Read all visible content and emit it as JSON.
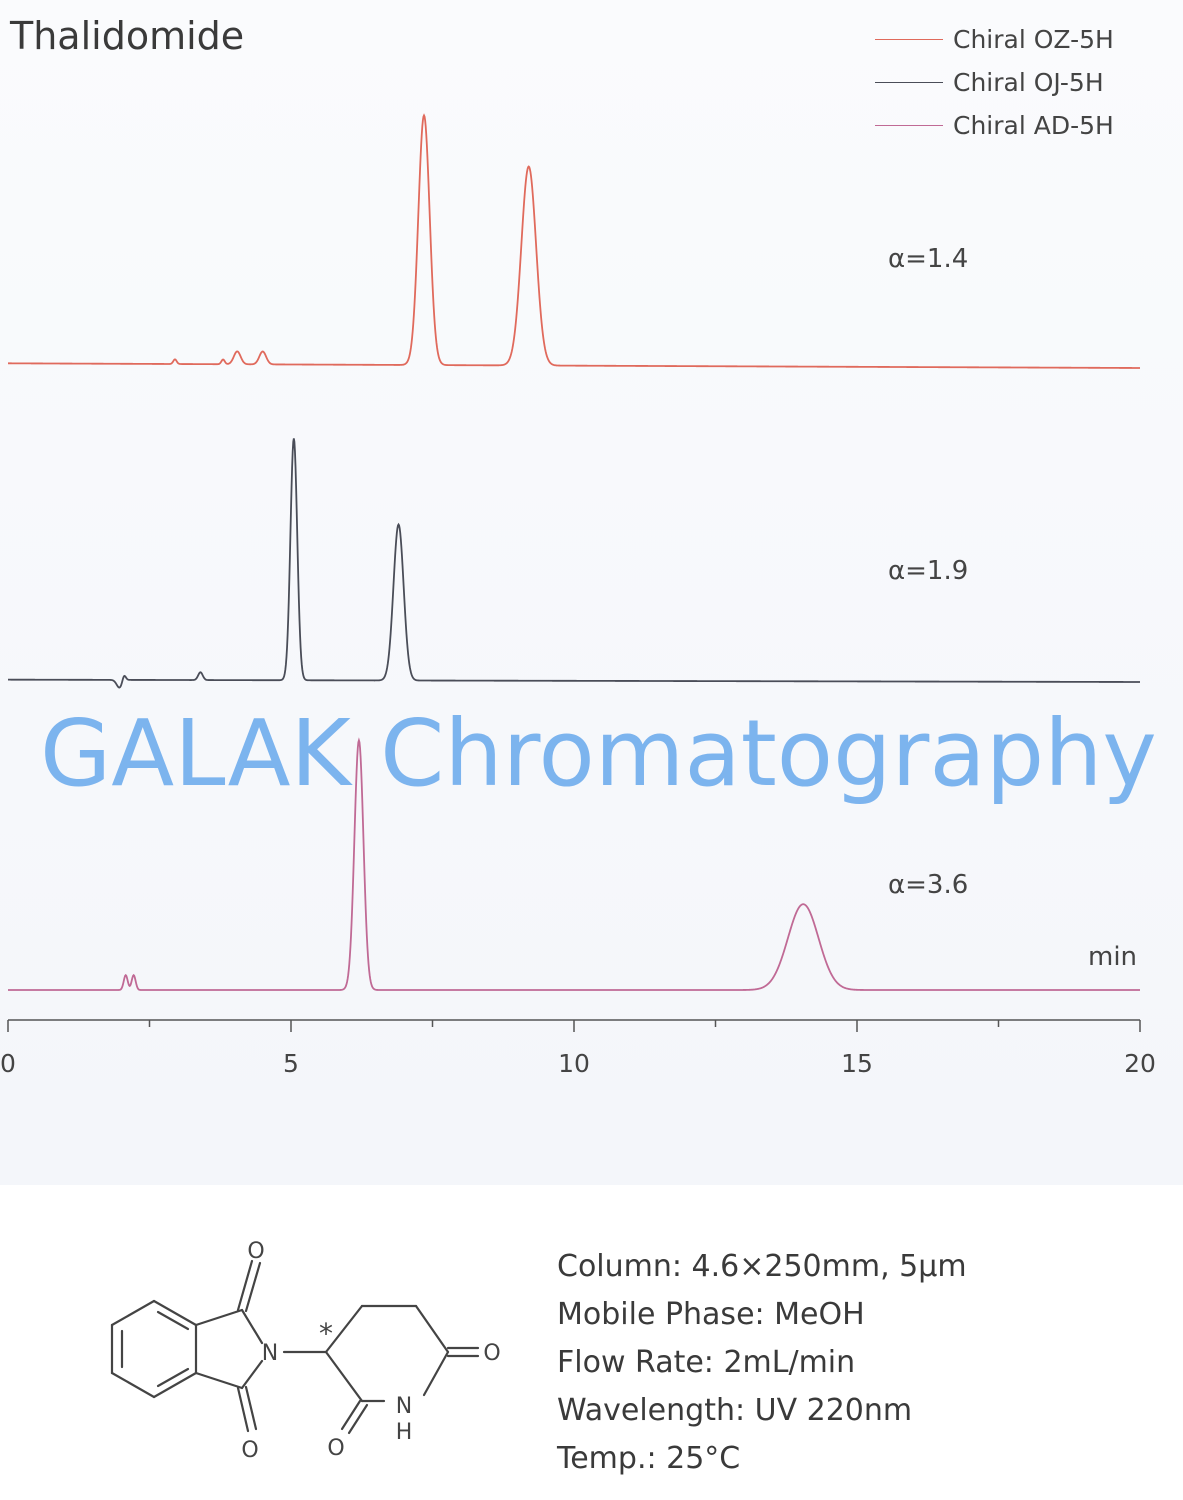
{
  "chart_data": {
    "type": "line",
    "title": "Thalidomide",
    "xlabel": "min",
    "xlim": [
      0,
      20
    ],
    "x_ticks": [
      0,
      5,
      10,
      15,
      20
    ],
    "grid": false,
    "legend_position": "top-right",
    "series": [
      {
        "name": "Chiral OZ-5H",
        "color": "#e06a5c",
        "alpha_label": "α=1.4",
        "baseline_drift": 0.4,
        "peaks": [
          {
            "rt": 2.95,
            "height": 1.2,
            "width": 0.03
          },
          {
            "rt": 3.8,
            "height": 1.2,
            "width": 0.03
          },
          {
            "rt": 4.05,
            "height": 3.3,
            "width": 0.06
          },
          {
            "rt": 4.5,
            "height": 3.3,
            "width": 0.06
          },
          {
            "rt": 7.35,
            "height": 64,
            "width": 0.1
          },
          {
            "rt": 9.2,
            "height": 51,
            "width": 0.13
          }
        ]
      },
      {
        "name": "Chiral OJ-5H",
        "color": "#4a4d58",
        "alpha_label": "α=1.9",
        "baseline_drift": 0.2,
        "peaks": [
          {
            "rt": 1.97,
            "height": -2.0,
            "width": 0.05
          },
          {
            "rt": 2.05,
            "height": 1.5,
            "width": 0.03
          },
          {
            "rt": 3.4,
            "height": 2.0,
            "width": 0.04
          },
          {
            "rt": 5.05,
            "height": 62,
            "width": 0.06
          },
          {
            "rt": 6.9,
            "height": 40,
            "width": 0.09
          }
        ]
      },
      {
        "name": "Chiral AD-5H",
        "color": "#c06a95",
        "alpha_label": "α=3.6",
        "baseline_drift": 0.0,
        "peaks": [
          {
            "rt": 2.08,
            "height": 3.8,
            "width": 0.035
          },
          {
            "rt": 2.22,
            "height": 3.8,
            "width": 0.035
          },
          {
            "rt": 6.2,
            "height": 64,
            "width": 0.08
          },
          {
            "rt": 14.05,
            "height": 22,
            "width": 0.27
          }
        ]
      }
    ]
  },
  "watermark": "GALAK Chromatography",
  "conditions": [
    "Column: 4.6×250mm, 5µm",
    "Mobile Phase: MeOH",
    "Flow Rate: 2mL/min",
    "Wavelength: UV 220nm",
    "Temp.: 25°C"
  ],
  "structure": {
    "atoms": [
      "O",
      "O",
      "N",
      "O",
      "O",
      "N",
      "H",
      "*"
    ]
  }
}
